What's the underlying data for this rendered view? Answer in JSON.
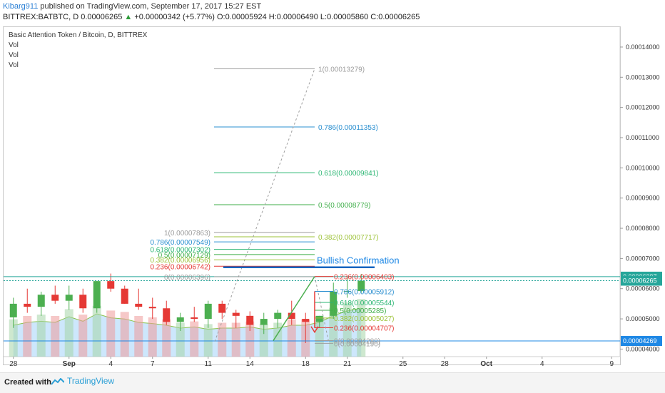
{
  "header": {
    "user": "Kibarg911",
    "published": "published on TradingView.com, September 17, 2017 15:27 EST",
    "symbol": "BITTREX:BATBTC, D",
    "last": "0.00006265",
    "change_arrow": "▲",
    "change": "+0.00000342 (+5.77%)",
    "ohlc": "O:0.00005924 H:0.00006490 L:0.00005860 C:0.00006265"
  },
  "legend": {
    "title": "Basic Attention Token / Bitcoin, D, BITTREX",
    "vol1": "Vol",
    "vol2": "Vol",
    "vol3": "Vol"
  },
  "footer": {
    "created_with": "Created with",
    "brand": "TradingView"
  },
  "colors": {
    "up": "#4caf50",
    "down": "#e53935",
    "volume_up": "#a5d6a7",
    "volume_down": "#ef9a9a",
    "volume_area": "#90caf9",
    "axis_text": "#333333",
    "grid": "#eeeeee",
    "accent_blue": "#1565c0",
    "last_price": "#26a69a"
  },
  "chart_data": {
    "type": "candlestick",
    "price_axis": {
      "min": 3.75e-05,
      "max": 1.46e-05,
      "ticks": [
        "0.00014000",
        "0.00013000",
        "0.00012000",
        "0.00011000",
        "0.00010000",
        "0.00009000",
        "0.00008000",
        "0.00007000",
        "0.00006000",
        "0.00005000",
        "0.00004000"
      ],
      "tick_values": [
        0.00014,
        0.00013,
        0.00012,
        0.00011,
        0.0001,
        9e-05,
        8e-05,
        7e-05,
        6e-05,
        5e-05,
        4e-05
      ],
      "labels": [
        {
          "value": 6.397e-05,
          "text": "0.00006397",
          "color": "#26a69a"
        },
        {
          "value": 6.265e-05,
          "text": "0.00006265",
          "color": "#26a69a"
        },
        {
          "value": 4.269e-05,
          "text": "0.00004269",
          "color": "#1e88e5"
        }
      ]
    },
    "time_axis": {
      "labels": [
        "28",
        "Sep",
        "4",
        "7",
        "11",
        "14",
        "18",
        "21",
        "25",
        "28",
        "Oct",
        "4",
        "9"
      ],
      "label_bar_index": [
        0,
        4,
        7,
        10,
        14,
        17,
        21,
        24,
        28,
        31,
        34,
        38,
        43
      ],
      "bold": [
        "Sep",
        "Oct"
      ],
      "total_bars": 44
    },
    "candles": [
      {
        "o": 5.05,
        "h": 5.7,
        "l": 4.7,
        "c": 5.5
      },
      {
        "o": 5.5,
        "h": 6.0,
        "l": 5.2,
        "c": 5.4
      },
      {
        "o": 5.4,
        "h": 5.9,
        "l": 5.1,
        "c": 5.8
      },
      {
        "o": 5.8,
        "h": 6.1,
        "l": 5.5,
        "c": 5.6
      },
      {
        "o": 5.6,
        "h": 6.1,
        "l": 5.3,
        "c": 5.8
      },
      {
        "o": 5.8,
        "h": 6.0,
        "l": 5.2,
        "c": 5.35
      },
      {
        "o": 5.35,
        "h": 6.25,
        "l": 5.2,
        "c": 6.25
      },
      {
        "o": 6.25,
        "h": 6.5,
        "l": 5.9,
        "c": 6.0
      },
      {
        "o": 6.0,
        "h": 6.1,
        "l": 5.5,
        "c": 5.5
      },
      {
        "o": 5.5,
        "h": 6.0,
        "l": 5.3,
        "c": 5.4
      },
      {
        "o": 5.4,
        "h": 5.7,
        "l": 5.0,
        "c": 5.35
      },
      {
        "o": 5.35,
        "h": 5.6,
        "l": 4.8,
        "c": 4.9
      },
      {
        "o": 4.9,
        "h": 5.2,
        "l": 4.6,
        "c": 5.05
      },
      {
        "o": 5.05,
        "h": 5.4,
        "l": 4.9,
        "c": 5.0
      },
      {
        "o": 5.0,
        "h": 5.6,
        "l": 4.7,
        "c": 5.5
      },
      {
        "o": 5.5,
        "h": 5.6,
        "l": 5.0,
        "c": 5.2
      },
      {
        "o": 5.2,
        "h": 5.3,
        "l": 4.7,
        "c": 5.1
      },
      {
        "o": 5.1,
        "h": 5.25,
        "l": 4.6,
        "c": 4.8
      },
      {
        "o": 4.8,
        "h": 5.2,
        "l": 4.5,
        "c": 5.0
      },
      {
        "o": 5.0,
        "h": 5.3,
        "l": 4.7,
        "c": 5.2
      },
      {
        "o": 5.2,
        "h": 5.6,
        "l": 4.8,
        "c": 5.0
      },
      {
        "o": 5.0,
        "h": 5.2,
        "l": 4.2,
        "c": 4.9
      },
      {
        "o": 4.9,
        "h": 5.1,
        "l": 4.7,
        "c": 5.1
      },
      {
        "o": 5.1,
        "h": 6.2,
        "l": 5.0,
        "c": 5.9
      },
      {
        "o": 5.9,
        "h": 6.4,
        "l": 5.7,
        "c": 5.92
      },
      {
        "o": 5.924,
        "h": 6.49,
        "l": 5.86,
        "c": 6.265
      }
    ],
    "candle_start_bar": 0,
    "volume_shaded": true,
    "annotations": [
      {
        "type": "text",
        "text": "Bullish Confirmation",
        "color": "#1e88e5",
        "value": 6.85e-05
      }
    ],
    "fib_up_large": [
      {
        "level": "1",
        "value": 0.00013279,
        "label": "1(0.00013279)",
        "color": "#9e9e9e"
      },
      {
        "level": "0.786",
        "value": 0.00011353,
        "label": "0.786(0.00011353)",
        "color": "#2a8fd0"
      },
      {
        "level": "0.618",
        "value": 9.841e-05,
        "label": "0.618(0.00009841)",
        "color": "#2bb673"
      },
      {
        "level": "0.5",
        "value": 8.779e-05,
        "label": "0.5(0.00008779)",
        "color": "#3fae49"
      },
      {
        "level": "0.382",
        "value": 7.717e-05,
        "label": "0.382(0.00007717)",
        "color": "#9ec33a"
      }
    ],
    "fib_left": [
      {
        "level": "1",
        "value": 7.863e-05,
        "label": "1(0.00007863)",
        "color": "#9e9e9e"
      },
      {
        "level": "0.786",
        "value": 7.549e-05,
        "label": "0.786(0.00007549)",
        "color": "#2a8fd0"
      },
      {
        "level": "0.618",
        "value": 7.302e-05,
        "label": "0.618(0.00007302)",
        "color": "#2bb673"
      },
      {
        "level": "0.5",
        "value": 7.129e-05,
        "label": "0.5(0.00007129)",
        "color": "#3fae49"
      },
      {
        "level": "0.382",
        "value": 6.956e-05,
        "label": "0.382(0.00006956)",
        "color": "#9ec33a"
      },
      {
        "level": "0.236",
        "value": 6.742e-05,
        "label": "0.236(0.00006742)",
        "color": "#e53935"
      },
      {
        "level": "0",
        "value": 6.396e-05,
        "label": "0(0.00006396)",
        "color": "#9e9e9e"
      }
    ],
    "fib_right_small": [
      {
        "level": "0.236",
        "value": 6.403e-05,
        "label": "0.236(0.00006403)",
        "color": "#e53935"
      },
      {
        "level": "0.786",
        "value": 5.912e-05,
        "label": "0.786(0.00005912)",
        "color": "#2a8fd0"
      },
      {
        "level": "0.618",
        "value": 5.544e-05,
        "label": "0.618(0.00005544)",
        "color": "#2bb673"
      },
      {
        "level": "0.5",
        "value": 5.285e-05,
        "label": "0.5(0.00005285)",
        "color": "#3fae49"
      },
      {
        "level": "0.382",
        "value": 5.027e-05,
        "label": "0.382(0.00005027)",
        "color": "#9ec33a"
      },
      {
        "level": "0.236",
        "value": 4.707e-05,
        "label": "0.236(0.00004707)",
        "color": "#e53935"
      },
      {
        "level": "0",
        "value": 4.28e-05,
        "label": "0(0.00004280)",
        "color": "#9e9e9e"
      },
      {
        "level": "0",
        "value": 4.19e-05,
        "label": "0(0.00004190)",
        "color": "#9e9e9e"
      }
    ]
  }
}
